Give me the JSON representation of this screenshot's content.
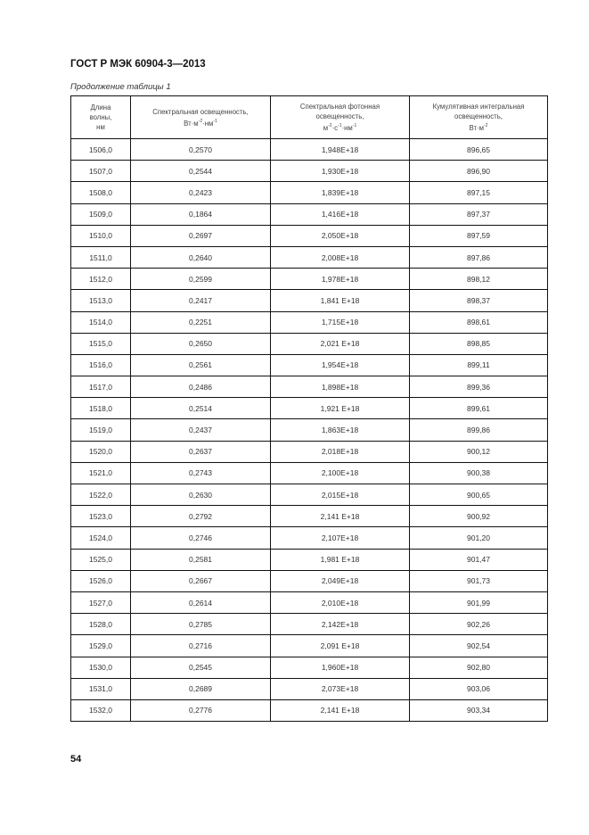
{
  "header": {
    "title": "ГОСТ Р МЭК 60904-3—2013"
  },
  "caption": "Продолжение таблицы 1",
  "table": {
    "columns": [
      {
        "l1": "Длина",
        "l2": "волны,",
        "l3": "нм"
      },
      {
        "l1": "Спектральная освещенность,",
        "unit": "Вт·м",
        "exp1": "-2",
        "unit2": "·нм",
        "exp2": "-1"
      },
      {
        "l1": "Спектральная фотонная",
        "l2": "освещенность,",
        "unit": "м",
        "exp1": "-2",
        "unit2": "·с",
        "exp2": "-1",
        "unit3": "·нм",
        "exp3": "-1"
      },
      {
        "l1": "Кумулятивная интегральная",
        "l2": "освещенность,",
        "unit": "Вт·м",
        "exp1": "-2"
      }
    ],
    "rows": [
      [
        "1506,0",
        "0,2570",
        "1,948E+18",
        "896,65"
      ],
      [
        "1507,0",
        "0,2544",
        "1,930E+18",
        "896,90"
      ],
      [
        "1508,0",
        "0,2423",
        "1,839E+18",
        "897,15"
      ],
      [
        "1509,0",
        "0,1864",
        "1,416E+18",
        "897,37"
      ],
      [
        "1510,0",
        "0,2697",
        "2,050E+18",
        "897,59"
      ],
      [
        "1511,0",
        "0,2640",
        "2,008E+18",
        "897,86"
      ],
      [
        "1512,0",
        "0,2599",
        "1,978E+18",
        "898,12"
      ],
      [
        "1513,0",
        "0,2417",
        "1,841 E+18",
        "898,37"
      ],
      [
        "1514,0",
        "0,2251",
        "1,715E+18",
        "898,61"
      ],
      [
        "1515,0",
        "0,2650",
        "2,021 E+18",
        "898,85"
      ],
      [
        "1516,0",
        "0,2561",
        "1,954E+18",
        "899,11"
      ],
      [
        "1517,0",
        "0,2486",
        "1,898E+18",
        "899,36"
      ],
      [
        "1518,0",
        "0,2514",
        "1,921 E+18",
        "899,61"
      ],
      [
        "1519,0",
        "0,2437",
        "1,863E+18",
        "899,86"
      ],
      [
        "1520,0",
        "0,2637",
        "2,018E+18",
        "900,12"
      ],
      [
        "1521,0",
        "0,2743",
        "2,100E+18",
        "900,38"
      ],
      [
        "1522,0",
        "0,2630",
        "2,015E+18",
        "900,65"
      ],
      [
        "1523,0",
        "0,2792",
        "2,141 E+18",
        "900,92"
      ],
      [
        "1524,0",
        "0,2746",
        "2,107E+18",
        "901,20"
      ],
      [
        "1525,0",
        "0,2581",
        "1,981 E+18",
        "901,47"
      ],
      [
        "1526,0",
        "0,2667",
        "2,049E+18",
        "901,73"
      ],
      [
        "1527,0",
        "0,2614",
        "2,010E+18",
        "901,99"
      ],
      [
        "1528,0",
        "0,2785",
        "2,142E+18",
        "902,26"
      ],
      [
        "1529,0",
        "0,2716",
        "2,091 E+18",
        "902,54"
      ],
      [
        "1530,0",
        "0,2545",
        "1,960E+18",
        "902,80"
      ],
      [
        "1531,0",
        "0,2689",
        "2,073E+18",
        "903,06"
      ],
      [
        "1532,0",
        "0,2776",
        "2,141 E+18",
        "903,34"
      ]
    ]
  },
  "footer": {
    "page_number": "54"
  }
}
